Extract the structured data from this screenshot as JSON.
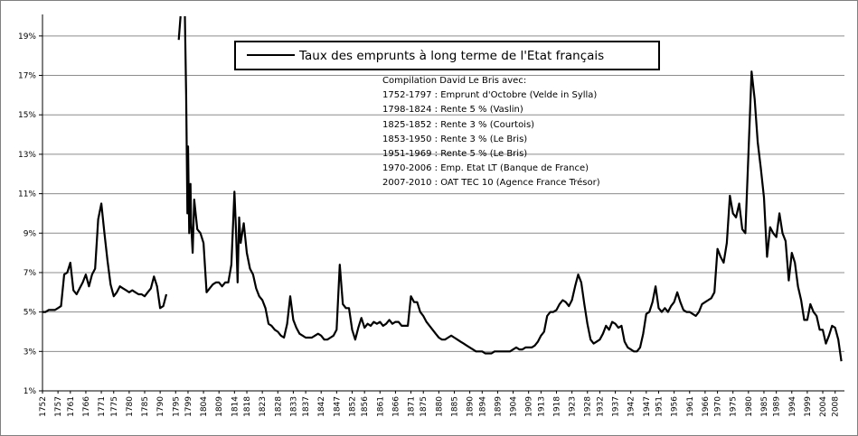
{
  "chart_data": {
    "type": "line",
    "title": "",
    "xlabel": "",
    "ylabel": "",
    "ylim": [
      1,
      20
    ],
    "grid": true,
    "legend": {
      "position": "top-center",
      "entries": [
        "Taux des emprunts à long terme de l'Etat français"
      ]
    },
    "annotation_lines": [
      "Compilation David Le Bris avec:",
      "1752-1797 : Emprunt d'Octobre (Velde in Sylla)",
      "1798-1824 : Rente 5 % (Vaslin)",
      "1825-1852 : Rente 3 % (Courtois)",
      "1853-1950 : Rente 3 % (Le Bris)",
      "1951-1969 : Rente 5 % (Le Bris)",
      "1970-2006 : Emp. Etat LT (Banque de France)",
      "2007-2010 : OAT TEC 10 (Agence France Trésor)"
    ],
    "y_ticks": [
      "1%",
      "3%",
      "5%",
      "7%",
      "9%",
      "11%",
      "13%",
      "15%",
      "17%",
      "19%"
    ],
    "x_ticks": [
      "1752",
      "1757",
      "1761",
      "1766",
      "1771",
      "1775",
      "1780",
      "1785",
      "1790",
      "1795",
      "1799",
      "1804",
      "1809",
      "1814",
      "1818",
      "1823",
      "1828",
      "1833",
      "1837",
      "1842",
      "1847",
      "1852",
      "1856",
      "1861",
      "1866",
      "1871",
      "1875",
      "1880",
      "1885",
      "1890",
      "1894",
      "1899",
      "1904",
      "1909",
      "1913",
      "1918",
      "1923",
      "1928",
      "1932",
      "1937",
      "1942",
      "1947",
      "1951",
      "1956",
      "1961",
      "1966",
      "1970",
      "1975",
      "1980",
      "1985",
      "1989",
      "1994",
      "1999",
      "2004",
      "2008"
    ],
    "series": [
      {
        "name": "Taux des emprunts à long terme de l'Etat français",
        "color": "#000000",
        "points": [
          [
            1752,
            5.0
          ],
          [
            1753,
            5.0
          ],
          [
            1754,
            5.1
          ],
          [
            1755,
            5.1
          ],
          [
            1756,
            5.1
          ],
          [
            1757,
            5.2
          ],
          [
            1758,
            5.3
          ],
          [
            1759,
            6.9
          ],
          [
            1760,
            7.0
          ],
          [
            1761,
            7.5
          ],
          [
            1762,
            6.1
          ],
          [
            1763,
            5.9
          ],
          [
            1764,
            6.2
          ],
          [
            1765,
            6.5
          ],
          [
            1766,
            6.9
          ],
          [
            1767,
            6.3
          ],
          [
            1768,
            6.9
          ],
          [
            1769,
            7.2
          ],
          [
            1770,
            9.7
          ],
          [
            1771,
            10.5
          ],
          [
            1772,
            9.0
          ],
          [
            1773,
            7.6
          ],
          [
            1774,
            6.4
          ],
          [
            1775,
            5.8
          ],
          [
            1776,
            6.0
          ],
          [
            1777,
            6.3
          ],
          [
            1778,
            6.2
          ],
          [
            1779,
            6.1
          ],
          [
            1780,
            6.0
          ],
          [
            1781,
            6.1
          ],
          [
            1782,
            6.0
          ],
          [
            1783,
            5.9
          ],
          [
            1784,
            5.9
          ],
          [
            1785,
            5.8
          ],
          [
            1786,
            6.0
          ],
          [
            1787,
            6.2
          ],
          [
            1788,
            6.8
          ],
          [
            1789,
            6.3
          ],
          [
            1790,
            5.2
          ],
          [
            1791,
            5.3
          ],
          [
            1792,
            5.9
          ],
          null,
          [
            1796,
            18.8
          ],
          [
            1796.6,
            20.0
          ],
          null,
          [
            1798,
            20.0
          ],
          [
            1798.4,
            16.0
          ],
          [
            1798.8,
            10.0
          ],
          [
            1799,
            13.4
          ],
          [
            1799.4,
            9.0
          ],
          [
            1799.8,
            11.5
          ],
          [
            1800,
            9.5
          ],
          [
            1800.5,
            8.0
          ],
          [
            1801,
            10.7
          ],
          [
            1802,
            9.2
          ],
          [
            1803,
            9.0
          ],
          [
            1804,
            8.5
          ],
          [
            1805,
            6.0
          ],
          [
            1806,
            6.2
          ],
          [
            1807,
            6.4
          ],
          [
            1808,
            6.5
          ],
          [
            1809,
            6.5
          ],
          [
            1810,
            6.3
          ],
          [
            1811,
            6.5
          ],
          [
            1812,
            6.5
          ],
          [
            1813,
            7.4
          ],
          [
            1814,
            11.1
          ],
          [
            1814.5,
            9.2
          ],
          [
            1815,
            6.5
          ],
          [
            1815.5,
            9.8
          ],
          [
            1816,
            8.5
          ],
          [
            1817,
            9.5
          ],
          [
            1818,
            8.0
          ],
          [
            1819,
            7.2
          ],
          [
            1820,
            6.9
          ],
          [
            1821,
            6.2
          ],
          [
            1822,
            5.8
          ],
          [
            1823,
            5.6
          ],
          [
            1824,
            5.2
          ],
          [
            1825,
            4.4
          ],
          [
            1826,
            4.3
          ],
          [
            1827,
            4.1
          ],
          [
            1828,
            4.0
          ],
          [
            1829,
            3.8
          ],
          [
            1830,
            3.7
          ],
          [
            1831,
            4.4
          ],
          [
            1832,
            5.8
          ],
          [
            1833,
            4.6
          ],
          [
            1834,
            4.2
          ],
          [
            1835,
            3.9
          ],
          [
            1836,
            3.8
          ],
          [
            1837,
            3.7
          ],
          [
            1838,
            3.7
          ],
          [
            1839,
            3.7
          ],
          [
            1840,
            3.8
          ],
          [
            1841,
            3.9
          ],
          [
            1842,
            3.8
          ],
          [
            1843,
            3.6
          ],
          [
            1844,
            3.6
          ],
          [
            1845,
            3.7
          ],
          [
            1846,
            3.8
          ],
          [
            1847,
            4.1
          ],
          [
            1848,
            7.4
          ],
          [
            1849,
            5.4
          ],
          [
            1850,
            5.2
          ],
          [
            1851,
            5.2
          ],
          [
            1852,
            4.1
          ],
          [
            1853,
            3.6
          ],
          [
            1854,
            4.2
          ],
          [
            1855,
            4.7
          ],
          [
            1856,
            4.2
          ],
          [
            1857,
            4.4
          ],
          [
            1858,
            4.3
          ],
          [
            1859,
            4.5
          ],
          [
            1860,
            4.4
          ],
          [
            1861,
            4.5
          ],
          [
            1862,
            4.3
          ],
          [
            1863,
            4.4
          ],
          [
            1864,
            4.6
          ],
          [
            1865,
            4.4
          ],
          [
            1866,
            4.5
          ],
          [
            1867,
            4.5
          ],
          [
            1868,
            4.3
          ],
          [
            1869,
            4.3
          ],
          [
            1870,
            4.3
          ],
          [
            1871,
            5.8
          ],
          [
            1872,
            5.5
          ],
          [
            1873,
            5.5
          ],
          [
            1874,
            5.0
          ],
          [
            1875,
            4.8
          ],
          [
            1876,
            4.5
          ],
          [
            1877,
            4.3
          ],
          [
            1878,
            4.1
          ],
          [
            1879,
            3.9
          ],
          [
            1880,
            3.7
          ],
          [
            1881,
            3.6
          ],
          [
            1882,
            3.6
          ],
          [
            1883,
            3.7
          ],
          [
            1884,
            3.8
          ],
          [
            1885,
            3.7
          ],
          [
            1886,
            3.6
          ],
          [
            1887,
            3.5
          ],
          [
            1888,
            3.4
          ],
          [
            1889,
            3.3
          ],
          [
            1890,
            3.2
          ],
          [
            1891,
            3.1
          ],
          [
            1892,
            3.0
          ],
          [
            1893,
            3.0
          ],
          [
            1894,
            3.0
          ],
          [
            1895,
            2.9
          ],
          [
            1896,
            2.9
          ],
          [
            1897,
            2.9
          ],
          [
            1898,
            3.0
          ],
          [
            1899,
            3.0
          ],
          [
            1900,
            3.0
          ],
          [
            1901,
            3.0
          ],
          [
            1902,
            3.0
          ],
          [
            1903,
            3.0
          ],
          [
            1904,
            3.1
          ],
          [
            1905,
            3.2
          ],
          [
            1906,
            3.1
          ],
          [
            1907,
            3.1
          ],
          [
            1908,
            3.2
          ],
          [
            1909,
            3.2
          ],
          [
            1910,
            3.2
          ],
          [
            1911,
            3.3
          ],
          [
            1912,
            3.5
          ],
          [
            1913,
            3.8
          ],
          [
            1914,
            4.0
          ],
          [
            1915,
            4.8
          ],
          [
            1916,
            5.0
          ],
          [
            1917,
            5.0
          ],
          [
            1918,
            5.1
          ],
          [
            1919,
            5.4
          ],
          [
            1920,
            5.6
          ],
          [
            1921,
            5.5
          ],
          [
            1922,
            5.3
          ],
          [
            1923,
            5.6
          ],
          [
            1924,
            6.3
          ],
          [
            1925,
            6.9
          ],
          [
            1926,
            6.5
          ],
          [
            1927,
            5.4
          ],
          [
            1928,
            4.4
          ],
          [
            1929,
            3.6
          ],
          [
            1930,
            3.4
          ],
          [
            1931,
            3.5
          ],
          [
            1932,
            3.6
          ],
          [
            1933,
            3.9
          ],
          [
            1934,
            4.3
          ],
          [
            1935,
            4.1
          ],
          [
            1936,
            4.5
          ],
          [
            1937,
            4.4
          ],
          [
            1938,
            4.2
          ],
          [
            1939,
            4.3
          ],
          [
            1940,
            3.5
          ],
          [
            1941,
            3.2
          ],
          [
            1942,
            3.1
          ],
          [
            1943,
            3.0
          ],
          [
            1944,
            3.0
          ],
          [
            1945,
            3.2
          ],
          [
            1946,
            3.9
          ],
          [
            1947,
            4.9
          ],
          [
            1948,
            5.0
          ],
          [
            1949,
            5.5
          ],
          [
            1950,
            6.3
          ],
          [
            1951,
            5.2
          ],
          [
            1952,
            5.0
          ],
          [
            1953,
            5.2
          ],
          [
            1954,
            5.0
          ],
          [
            1955,
            5.3
          ],
          [
            1956,
            5.5
          ],
          [
            1957,
            6.0
          ],
          [
            1958,
            5.5
          ],
          [
            1959,
            5.1
          ],
          [
            1960,
            5.0
          ],
          [
            1961,
            5.0
          ],
          [
            1962,
            4.9
          ],
          [
            1963,
            4.8
          ],
          [
            1964,
            5.0
          ],
          [
            1965,
            5.4
          ],
          [
            1966,
            5.5
          ],
          [
            1967,
            5.6
          ],
          [
            1968,
            5.7
          ],
          [
            1969,
            6.0
          ],
          [
            1970,
            8.2
          ],
          [
            1971,
            7.8
          ],
          [
            1972,
            7.5
          ],
          [
            1973,
            8.5
          ],
          [
            1974,
            10.9
          ],
          [
            1975,
            10.0
          ],
          [
            1976,
            9.8
          ],
          [
            1977,
            10.5
          ],
          [
            1978,
            9.2
          ],
          [
            1979,
            9.0
          ],
          [
            1980,
            13.0
          ],
          [
            1981,
            17.2
          ],
          [
            1982,
            15.8
          ],
          [
            1983,
            13.6
          ],
          [
            1984,
            12.3
          ],
          [
            1985,
            10.8
          ],
          [
            1986,
            7.8
          ],
          [
            1987,
            9.3
          ],
          [
            1988,
            9.0
          ],
          [
            1989,
            8.8
          ],
          [
            1990,
            10.0
          ],
          [
            1991,
            9.0
          ],
          [
            1992,
            8.6
          ],
          [
            1993,
            6.6
          ],
          [
            1994,
            8.0
          ],
          [
            1995,
            7.5
          ],
          [
            1996,
            6.3
          ],
          [
            1997,
            5.6
          ],
          [
            1998,
            4.6
          ],
          [
            1999,
            4.6
          ],
          [
            2000,
            5.4
          ],
          [
            2001,
            5.0
          ],
          [
            2002,
            4.8
          ],
          [
            2003,
            4.1
          ],
          [
            2004,
            4.1
          ],
          [
            2005,
            3.4
          ],
          [
            2006,
            3.8
          ],
          [
            2007,
            4.3
          ],
          [
            2008,
            4.2
          ],
          [
            2009,
            3.6
          ],
          [
            2010,
            2.5
          ]
        ]
      }
    ]
  }
}
